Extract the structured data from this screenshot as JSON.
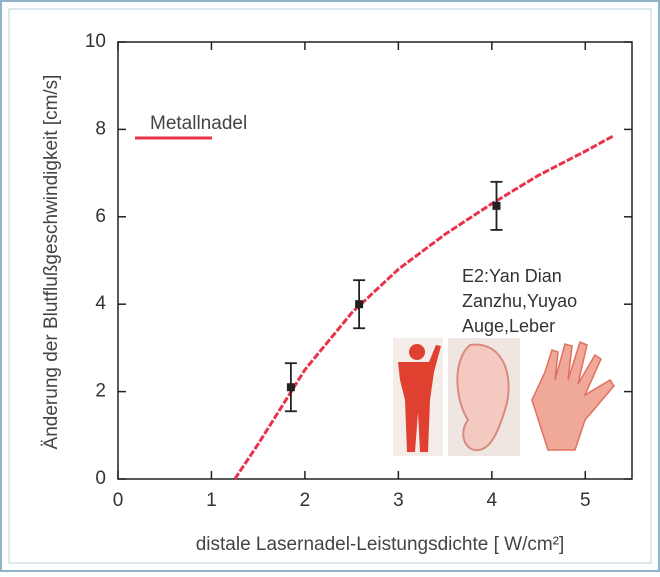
{
  "chart_data": {
    "type": "line",
    "x_label": "distale Lasernadel-Leistungsdichte [ W/cm²]",
    "y_label": "Änderung der Blutflußgeschwindigkeit [cm/s]",
    "xlim": [
      0,
      5.5
    ],
    "ylim": [
      0,
      10
    ],
    "xticks": [
      0,
      1,
      2,
      3,
      4,
      5
    ],
    "yticks": [
      0,
      2,
      4,
      6,
      8,
      10
    ],
    "legend": "upper left",
    "series": [
      {
        "name": "Metallnadel",
        "color": "#e8344a",
        "x": [
          1.25,
          1.5,
          2,
          2.5,
          3,
          3.5,
          4,
          4.5,
          5,
          5.3
        ],
        "values": [
          0,
          0.8,
          2.5,
          3.8,
          4.8,
          5.6,
          6.3,
          6.95,
          7.5,
          7.85
        ]
      }
    ],
    "points": {
      "color": "#222",
      "x": [
        1.85,
        2.58,
        4.05
      ],
      "values": [
        2.1,
        4.0,
        6.25
      ],
      "errors": [
        0.55,
        0.55,
        0.55
      ]
    },
    "annotation": [
      "E2:Yan Dian",
      "Zanzhu,Yuyao",
      "Auge,Leber"
    ]
  }
}
